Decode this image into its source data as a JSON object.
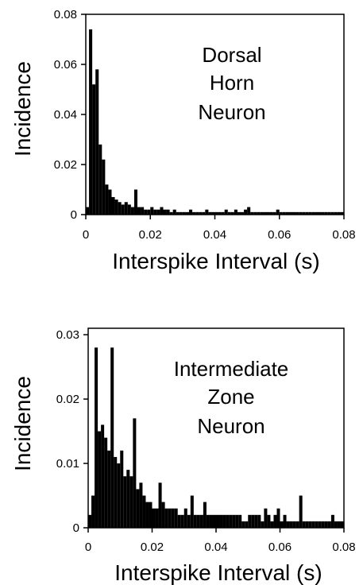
{
  "chart_data": [
    {
      "type": "bar",
      "title": "",
      "xlabel": "Interspike Interval (s)",
      "ylabel": "Incidence",
      "xlim": [
        0,
        0.08
      ],
      "ylim": [
        0,
        0.08
      ],
      "x_ticks": [
        "0",
        "0.02",
        "0.04",
        "0.06",
        "0.08"
      ],
      "y_ticks": [
        "0",
        "0.02",
        "0.04",
        "0.06",
        "0.08"
      ],
      "annotation": [
        "Dorsal",
        "Horn",
        "Neuron"
      ],
      "bin_width": 0.001,
      "values": [
        0.003,
        0.074,
        0.052,
        0.058,
        0.028,
        0.022,
        0.012,
        0.01,
        0.007,
        0.006,
        0.005,
        0.004,
        0.005,
        0.004,
        0.003,
        0.01,
        0.003,
        0.003,
        0.002,
        0.002,
        0.003,
        0.002,
        0.002,
        0.003,
        0.002,
        0.002,
        0.001,
        0.002,
        0.001,
        0.001,
        0.001,
        0.001,
        0.002,
        0.001,
        0.001,
        0.001,
        0.001,
        0.002,
        0.001,
        0.001,
        0.001,
        0.001,
        0.001,
        0.002,
        0.001,
        0.001,
        0.002,
        0.001,
        0.001,
        0.002,
        0.003,
        0.001,
        0.001,
        0.001,
        0.001,
        0.001,
        0.001,
        0.001,
        0.001,
        0.002,
        0.001,
        0.001,
        0.001,
        0.001,
        0.001,
        0.001,
        0.001,
        0.001,
        0.001,
        0.001,
        0.001,
        0.001,
        0.001,
        0.001,
        0.001,
        0.001,
        0.001,
        0.001,
        0.001,
        0.001
      ],
      "grid": false,
      "color": "#000000"
    },
    {
      "type": "bar",
      "title": "",
      "xlabel": "Interspike Interval (s)",
      "ylabel": "Incidence",
      "xlim": [
        0,
        0.08
      ],
      "ylim": [
        0,
        0.031
      ],
      "x_ticks": [
        "0",
        "0.02",
        "0.04",
        "0.06",
        "0.08"
      ],
      "y_ticks": [
        "0",
        "0.01",
        "0.02",
        "0.03"
      ],
      "annotation": [
        "Intermediate",
        "Zone",
        "Neuron"
      ],
      "bin_width": 0.001,
      "values": [
        0.002,
        0.005,
        0.028,
        0.015,
        0.016,
        0.014,
        0.012,
        0.028,
        0.011,
        0.01,
        0.012,
        0.008,
        0.009,
        0.008,
        0.017,
        0.006,
        0.007,
        0.005,
        0.004,
        0.004,
        0.003,
        0.003,
        0.007,
        0.004,
        0.003,
        0.003,
        0.003,
        0.003,
        0.002,
        0.002,
        0.003,
        0.002,
        0.005,
        0.002,
        0.002,
        0.002,
        0.004,
        0.002,
        0.002,
        0.002,
        0.002,
        0.002,
        0.002,
        0.002,
        0.002,
        0.002,
        0.002,
        0.002,
        0.001,
        0.001,
        0.002,
        0.002,
        0.002,
        0.002,
        0.001,
        0.003,
        0.002,
        0.001,
        0.002,
        0.003,
        0.001,
        0.002,
        0.001,
        0.001,
        0.001,
        0.001,
        0.005,
        0.001,
        0.001,
        0.001,
        0.001,
        0.001,
        0.001,
        0.001,
        0.001,
        0.001,
        0.002,
        0.001,
        0.001,
        0.001
      ],
      "grid": false,
      "color": "#000000"
    }
  ]
}
